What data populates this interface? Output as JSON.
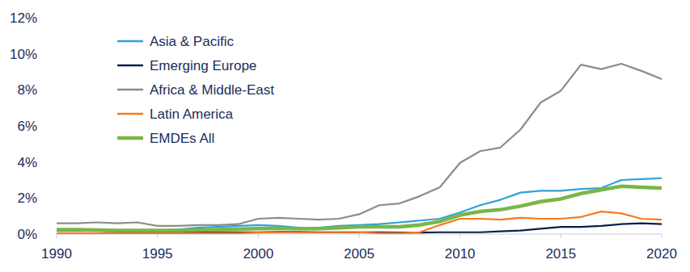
{
  "chart_data": {
    "type": "line",
    "x": [
      1990,
      1991,
      1992,
      1993,
      1994,
      1995,
      1996,
      1997,
      1998,
      1999,
      2000,
      2001,
      2002,
      2003,
      2004,
      2005,
      2006,
      2007,
      2008,
      2009,
      2010,
      2011,
      2012,
      2013,
      2014,
      2015,
      2016,
      2017,
      2018,
      2019,
      2020
    ],
    "xlim": [
      1990,
      2020
    ],
    "xticks": [
      1990,
      1995,
      2000,
      2005,
      2010,
      2015,
      2020
    ],
    "ylim": [
      0,
      12
    ],
    "yticks": [
      {
        "value": 0,
        "label": "0%"
      },
      {
        "value": 2,
        "label": "2%"
      },
      {
        "value": 4,
        "label": "4%"
      },
      {
        "value": 6,
        "label": "6%"
      },
      {
        "value": 8,
        "label": "8%"
      },
      {
        "value": 10,
        "label": "10%"
      },
      {
        "value": 12,
        "label": "12%"
      }
    ],
    "grid": false,
    "legend": "upper left",
    "series": [
      {
        "name": "Asia & Pacific",
        "color": "#2ba3d9",
        "values": [
          0.25,
          0.25,
          0.25,
          0.22,
          0.22,
          0.2,
          0.25,
          0.35,
          0.4,
          0.45,
          0.5,
          0.45,
          0.35,
          0.35,
          0.45,
          0.5,
          0.55,
          0.65,
          0.75,
          0.85,
          1.2,
          1.6,
          1.9,
          2.3,
          2.4,
          2.4,
          2.5,
          2.55,
          3.0,
          3.05,
          3.1
        ]
      },
      {
        "name": "Emerging Europe",
        "color": "#0b1f4b",
        "values": [
          0.2,
          0.2,
          0.18,
          0.15,
          0.12,
          0.1,
          0.1,
          0.1,
          0.1,
          0.1,
          0.1,
          0.12,
          0.12,
          0.1,
          0.1,
          0.1,
          0.1,
          0.08,
          0.08,
          0.1,
          0.1,
          0.1,
          0.15,
          0.2,
          0.3,
          0.4,
          0.4,
          0.45,
          0.55,
          0.6,
          0.55
        ]
      },
      {
        "name": "Africa & Middle-East",
        "color": "#8c8c8c",
        "values": [
          0.6,
          0.6,
          0.65,
          0.6,
          0.65,
          0.45,
          0.45,
          0.5,
          0.5,
          0.55,
          0.85,
          0.9,
          0.85,
          0.8,
          0.85,
          1.1,
          1.6,
          1.7,
          2.1,
          2.6,
          3.95,
          4.6,
          4.8,
          5.8,
          7.3,
          7.95,
          9.4,
          9.15,
          9.45,
          9.05,
          8.6
        ]
      },
      {
        "name": "Latin America",
        "color": "#f47a20",
        "values": [
          0.05,
          0.05,
          0.05,
          0.05,
          0.05,
          0.05,
          0.05,
          0.05,
          0.05,
          0.05,
          0.08,
          0.1,
          0.1,
          0.1,
          0.1,
          0.1,
          0.05,
          0.05,
          0.1,
          0.5,
          0.85,
          0.85,
          0.8,
          0.9,
          0.85,
          0.85,
          0.95,
          1.25,
          1.15,
          0.85,
          0.8
        ]
      },
      {
        "name": "EMDEs All",
        "color": "#7ab648",
        "values": [
          0.25,
          0.25,
          0.22,
          0.2,
          0.2,
          0.2,
          0.2,
          0.22,
          0.25,
          0.28,
          0.3,
          0.32,
          0.3,
          0.3,
          0.35,
          0.4,
          0.4,
          0.4,
          0.5,
          0.7,
          1.05,
          1.25,
          1.35,
          1.55,
          1.8,
          1.95,
          2.25,
          2.45,
          2.65,
          2.6,
          2.55
        ]
      }
    ]
  }
}
